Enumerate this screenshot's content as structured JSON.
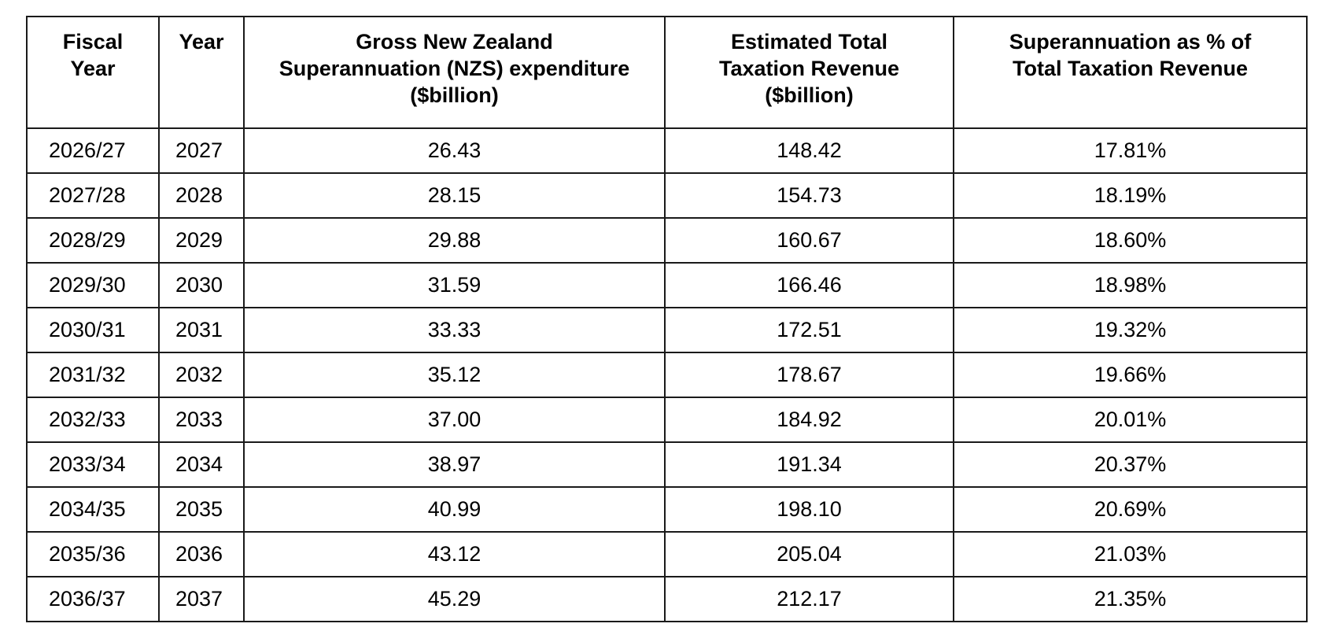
{
  "table": {
    "headers": [
      [
        "Fiscal",
        "Year"
      ],
      [
        "Year"
      ],
      [
        "Gross New Zealand",
        "Superannuation (NZS) expenditure",
        "($billion)"
      ],
      [
        "Estimated Total",
        "Taxation Revenue",
        "($billion)"
      ],
      [
        "Superannuation as % of",
        "Total Taxation Revenue"
      ]
    ],
    "rows": [
      [
        "2026/27",
        "2027",
        "26.43",
        "148.42",
        "17.81%"
      ],
      [
        "2027/28",
        "2028",
        "28.15",
        "154.73",
        "18.19%"
      ],
      [
        "2028/29",
        "2029",
        "29.88",
        "160.67",
        "18.60%"
      ],
      [
        "2029/30",
        "2030",
        "31.59",
        "166.46",
        "18.98%"
      ],
      [
        "2030/31",
        "2031",
        "33.33",
        "172.51",
        "19.32%"
      ],
      [
        "2031/32",
        "2032",
        "35.12",
        "178.67",
        "19.66%"
      ],
      [
        "2032/33",
        "2033",
        "37.00",
        "184.92",
        "20.01%"
      ],
      [
        "2033/34",
        "2034",
        "38.97",
        "191.34",
        "20.37%"
      ],
      [
        "2034/35",
        "2035",
        "40.99",
        "198.10",
        "20.69%"
      ],
      [
        "2035/36",
        "2036",
        "43.12",
        "205.04",
        "21.03%"
      ],
      [
        "2036/37",
        "2037",
        "45.29",
        "212.17",
        "21.35%"
      ]
    ]
  }
}
